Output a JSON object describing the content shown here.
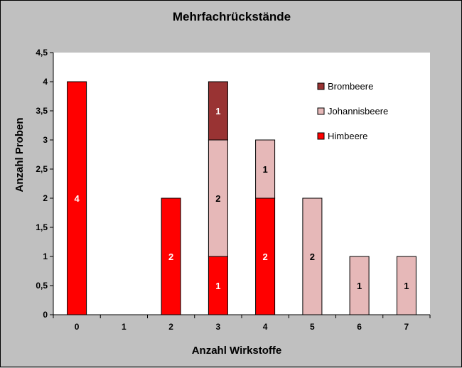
{
  "chart_data": {
    "type": "bar",
    "stacked": true,
    "title": "Mehrfachrückstände",
    "xlabel": "Anzahl  Wirkstoffe",
    "ylabel": "Anzahl  Proben",
    "categories": [
      "0",
      "1",
      "2",
      "3",
      "4",
      "5",
      "6",
      "7"
    ],
    "ylim": [
      0,
      4.5
    ],
    "yticks": [
      "0",
      "0,5",
      "1",
      "1,5",
      "2",
      "2,5",
      "3",
      "3,5",
      "4",
      "4,5"
    ],
    "grid": false,
    "legend_position": "top-right",
    "series": [
      {
        "name": "Himbeere",
        "color": "#ff0000",
        "label_color": "#ffffff",
        "values": [
          4,
          0,
          2,
          1,
          2,
          0,
          0,
          0
        ]
      },
      {
        "name": "Johannisbeere",
        "color": "#e6b8b8",
        "label_color": "#000000",
        "values": [
          0,
          0,
          0,
          2,
          1,
          2,
          1,
          1
        ]
      },
      {
        "name": "Brombeere",
        "color": "#993333",
        "label_color": "#ffffff",
        "values": [
          0,
          0,
          0,
          1,
          0,
          0,
          0,
          0
        ]
      }
    ]
  }
}
